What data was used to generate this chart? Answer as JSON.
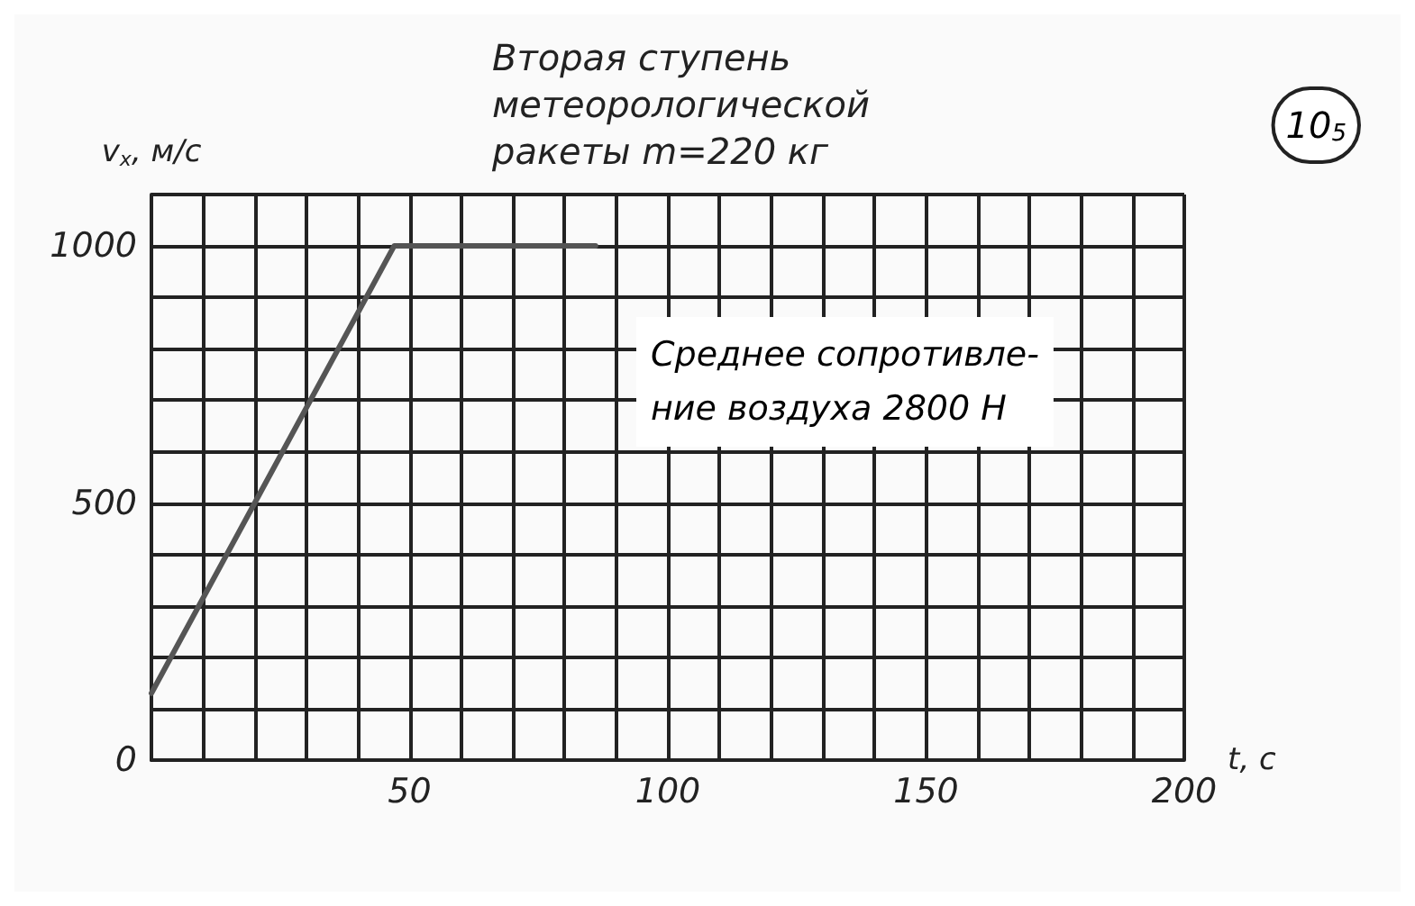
{
  "chart_data": {
    "type": "line",
    "title": "Вторая ступень метеорологической ракеты m=220 кг",
    "xlabel": "t, с",
    "ylabel": "v$_{x}$, м/с",
    "x": [
      0,
      20,
      47,
      86
    ],
    "series": [
      {
        "color": "#555555",
        "values": [
          130,
          500,
          1000,
          1000
        ]
      }
    ],
    "xlim": [
      0,
      200
    ],
    "ylim": [
      0,
      1100
    ],
    "xticks": [
      {
        "value": 0,
        "label": null
      },
      {
        "value": 10,
        "label": null
      },
      {
        "value": 20,
        "label": null
      },
      {
        "value": 30,
        "label": null
      },
      {
        "value": 40,
        "label": null
      },
      50,
      {
        "value": 60,
        "label": null
      },
      {
        "value": 70,
        "label": null
      },
      {
        "value": 80,
        "label": null
      },
      {
        "value": 90,
        "label": null
      },
      100,
      {
        "value": 110,
        "label": null
      },
      {
        "value": 120,
        "label": null
      },
      {
        "value": 130,
        "label": null
      },
      {
        "value": 140,
        "label": null
      },
      150,
      {
        "value": 160,
        "label": null
      },
      {
        "value": 170,
        "label": null
      },
      {
        "value": 180,
        "label": null
      },
      {
        "value": 190,
        "label": null
      },
      200
    ],
    "yticks": [
      0,
      {
        "value": 100,
        "label": null
      },
      {
        "value": 200,
        "label": null
      },
      {
        "value": 300,
        "label": null
      },
      {
        "value": 400,
        "label": null
      },
      500,
      {
        "value": 600,
        "label": null
      },
      {
        "value": 700,
        "label": null
      },
      {
        "value": 800,
        "label": null
      },
      {
        "value": 900,
        "label": null
      },
      1000,
      {
        "value": 1100,
        "label": null
      }
    ],
    "grid": true,
    "marker": "none",
    "line_style": "solid",
    "annotations": [
      "Среднее сопротивле-\nние воздуха 2800 Н",
      "10$_{5}$"
    ]
  }
}
